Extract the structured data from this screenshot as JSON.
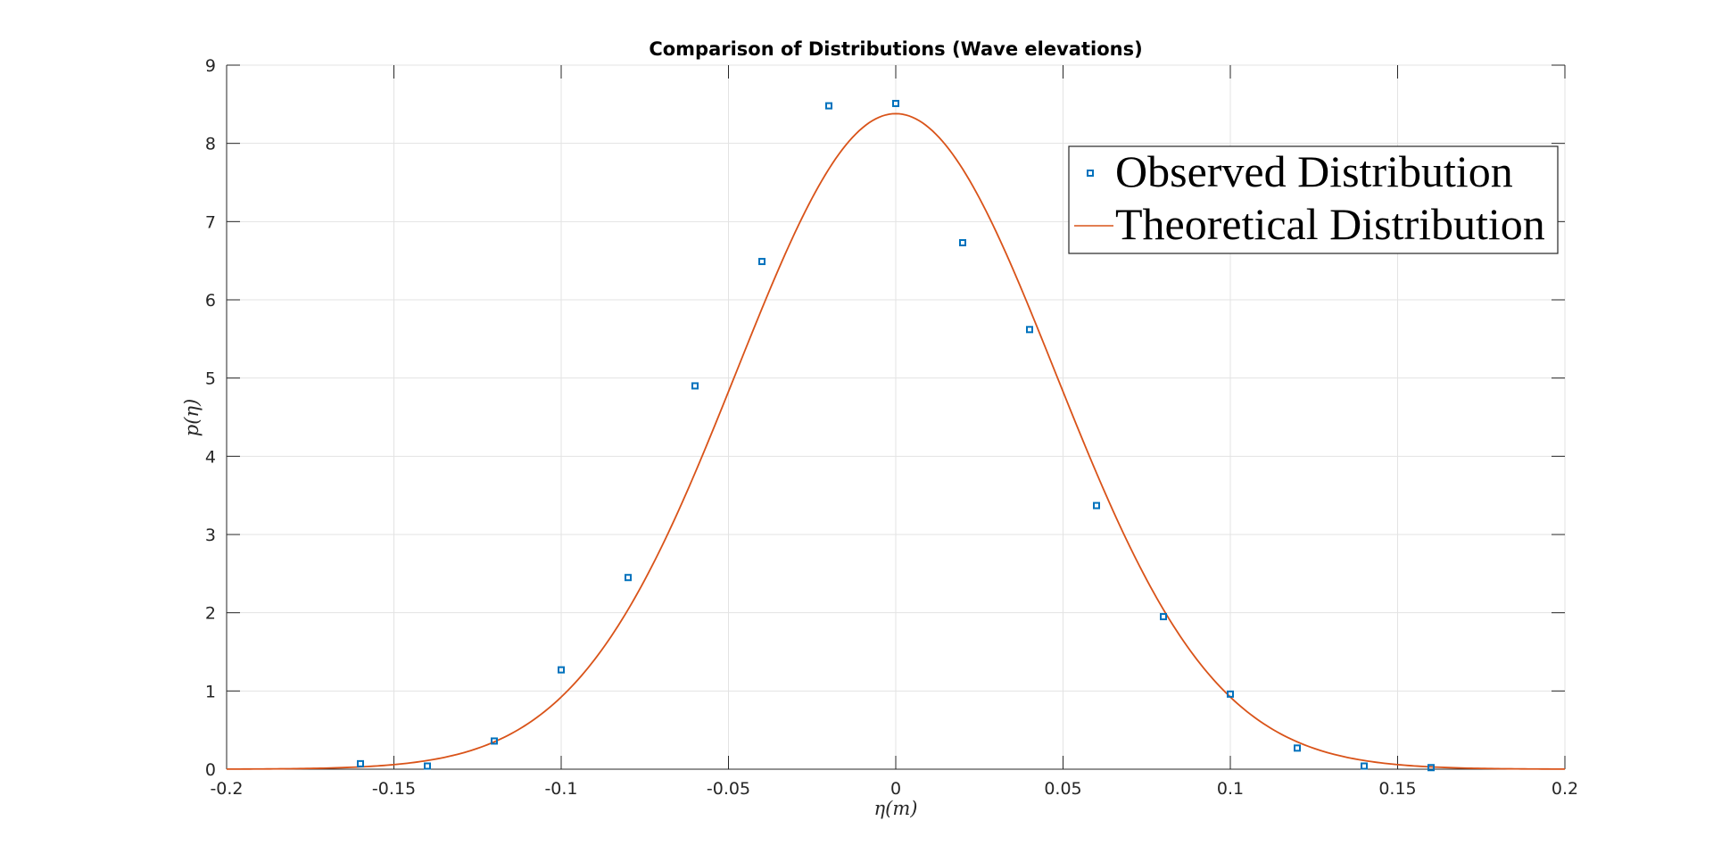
{
  "chart_data": {
    "type": "line",
    "title": "Comparison of Distributions (Wave elevations)",
    "xlabel": "η(m)",
    "ylabel": "p(η)",
    "xlim": [
      -0.2,
      0.2
    ],
    "ylim": [
      0,
      9
    ],
    "x_ticks": [
      "-0.2",
      "-0.15",
      "-0.1",
      "-0.05",
      "0",
      "0.05",
      "0.1",
      "0.15",
      "0.2"
    ],
    "y_ticks": [
      "0",
      "1",
      "2",
      "3",
      "4",
      "5",
      "6",
      "7",
      "8",
      "9"
    ],
    "grid": true,
    "legend_position": "top-right",
    "series": [
      {
        "name": "Observed  Distribution",
        "kind": "scatter",
        "marker": "square",
        "color": "#0072BD",
        "x": [
          -0.16,
          -0.14,
          -0.12,
          -0.1,
          -0.08,
          -0.06,
          -0.04,
          -0.02,
          0.0,
          0.02,
          0.04,
          0.06,
          0.08,
          0.1,
          0.12,
          0.14,
          0.16
        ],
        "y": [
          0.07,
          0.04,
          0.36,
          1.27,
          2.45,
          4.9,
          6.49,
          8.48,
          8.51,
          6.73,
          5.62,
          3.37,
          1.95,
          0.96,
          0.27,
          0.04,
          0.02
        ]
      },
      {
        "name": "Theoretical  Distribution",
        "kind": "line",
        "color": "#D95319",
        "peak": 8.38,
        "sigma": 0.0476
      }
    ]
  }
}
